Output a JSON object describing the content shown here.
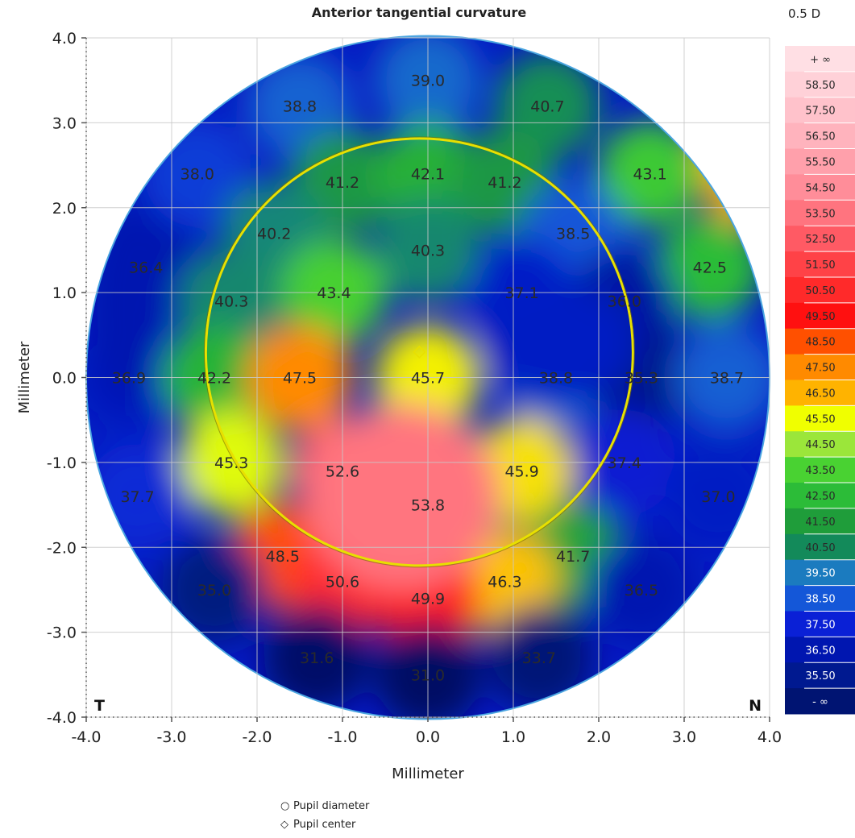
{
  "chart_data": {
    "type": "heatmap",
    "title": "Anterior tangential curvature",
    "xlabel": "Millimeter",
    "ylabel": "Millimeter",
    "xlim": [
      -4.0,
      4.0
    ],
    "ylim": [
      -4.0,
      4.0
    ],
    "x_ticks": [
      "-4.0",
      "-3.0",
      "-2.0",
      "-1.0",
      "0.0",
      "1.0",
      "2.0",
      "3.0",
      "4.0"
    ],
    "y_ticks": [
      "-4.0",
      "-3.0",
      "-2.0",
      "-1.0",
      "0.0",
      "1.0",
      "2.0",
      "3.0",
      "4.0"
    ],
    "grid": true,
    "corner_labels": {
      "left": "T",
      "right": "N"
    },
    "scale": {
      "step_label": "0.5 D",
      "top_label": "+ ∞",
      "bottom_label": "- ∞",
      "levels": [
        "58.50",
        "57.50",
        "56.50",
        "55.50",
        "54.50",
        "53.50",
        "52.50",
        "51.50",
        "50.50",
        "49.50",
        "48.50",
        "47.50",
        "46.50",
        "45.50",
        "44.50",
        "43.50",
        "42.50",
        "41.50",
        "40.50",
        "39.50",
        "38.50",
        "37.50",
        "36.50",
        "35.50"
      ]
    },
    "pupil": {
      "center": [
        -0.1,
        0.3
      ],
      "diameter": 5.0
    },
    "values": [
      {
        "x": 0.0,
        "y": 3.5,
        "v": "39.0"
      },
      {
        "x": -1.5,
        "y": 3.2,
        "v": "38.8"
      },
      {
        "x": 1.4,
        "y": 3.2,
        "v": "40.7"
      },
      {
        "x": -2.7,
        "y": 2.4,
        "v": "38.0"
      },
      {
        "x": -1.0,
        "y": 2.3,
        "v": "41.2"
      },
      {
        "x": 0.0,
        "y": 2.4,
        "v": "42.1"
      },
      {
        "x": 0.9,
        "y": 2.3,
        "v": "41.2"
      },
      {
        "x": 2.6,
        "y": 2.4,
        "v": "43.1"
      },
      {
        "x": -1.8,
        "y": 1.7,
        "v": "40.2"
      },
      {
        "x": 1.7,
        "y": 1.7,
        "v": "38.5"
      },
      {
        "x": 0.0,
        "y": 1.5,
        "v": "40.3"
      },
      {
        "x": -3.3,
        "y": 1.3,
        "v": "36.4"
      },
      {
        "x": 3.3,
        "y": 1.3,
        "v": "42.5"
      },
      {
        "x": -2.3,
        "y": 0.9,
        "v": "40.3"
      },
      {
        "x": -1.1,
        "y": 1.0,
        "v": "43.4"
      },
      {
        "x": 1.1,
        "y": 1.0,
        "v": "37.1"
      },
      {
        "x": 2.3,
        "y": 0.9,
        "v": "36.0"
      },
      {
        "x": -3.5,
        "y": 0.0,
        "v": "36.9"
      },
      {
        "x": -2.5,
        "y": 0.0,
        "v": "42.2"
      },
      {
        "x": -1.5,
        "y": 0.0,
        "v": "47.5"
      },
      {
        "x": 0.0,
        "y": 0.0,
        "v": "45.7"
      },
      {
        "x": 1.5,
        "y": 0.0,
        "v": "38.8"
      },
      {
        "x": 2.5,
        "y": 0.0,
        "v": "35.3"
      },
      {
        "x": 3.5,
        "y": 0.0,
        "v": "38.7"
      },
      {
        "x": -2.3,
        "y": -1.0,
        "v": "45.3"
      },
      {
        "x": -1.0,
        "y": -1.1,
        "v": "52.6"
      },
      {
        "x": 1.1,
        "y": -1.1,
        "v": "45.9"
      },
      {
        "x": 2.3,
        "y": -1.0,
        "v": "37.4"
      },
      {
        "x": -3.4,
        "y": -1.4,
        "v": "37.7"
      },
      {
        "x": 3.4,
        "y": -1.4,
        "v": "37.0"
      },
      {
        "x": 0.0,
        "y": -1.5,
        "v": "53.8"
      },
      {
        "x": -1.7,
        "y": -2.1,
        "v": "48.5"
      },
      {
        "x": 1.7,
        "y": -2.1,
        "v": "41.7"
      },
      {
        "x": -1.0,
        "y": -2.4,
        "v": "50.6"
      },
      {
        "x": 0.9,
        "y": -2.4,
        "v": "46.3"
      },
      {
        "x": 0.0,
        "y": -2.6,
        "v": "49.9"
      },
      {
        "x": -2.5,
        "y": -2.5,
        "v": "35.0"
      },
      {
        "x": 2.5,
        "y": -2.5,
        "v": "36.5"
      },
      {
        "x": -1.3,
        "y": -3.3,
        "v": "31.6"
      },
      {
        "x": 1.3,
        "y": -3.3,
        "v": "33.7"
      },
      {
        "x": 0.0,
        "y": -3.5,
        "v": "31.0"
      }
    ],
    "contours": [
      {
        "cx": -0.35,
        "cy": -1.5,
        "rx": 0.85,
        "ry": 0.9,
        "v": 56.0
      },
      {
        "cx": -0.3,
        "cy": -1.4,
        "rx": 1.15,
        "ry": 1.1,
        "v": 53.5
      },
      {
        "cx": 1.55,
        "cy": 0.4,
        "rx": 0.9,
        "ry": 0.7,
        "v": 37.0
      },
      {
        "cx": 3.6,
        "cy": 2.6,
        "rx": 0.4,
        "ry": 0.8,
        "v": 46.5
      },
      {
        "cx": -3.5,
        "cy": 0.9,
        "rx": 0.5,
        "ry": 1.2,
        "v": 36.5
      }
    ]
  },
  "legend": [
    {
      "symbol": "○",
      "label": "Pupil diameter"
    },
    {
      "symbol": "◇",
      "label": "Pupil center"
    }
  ]
}
